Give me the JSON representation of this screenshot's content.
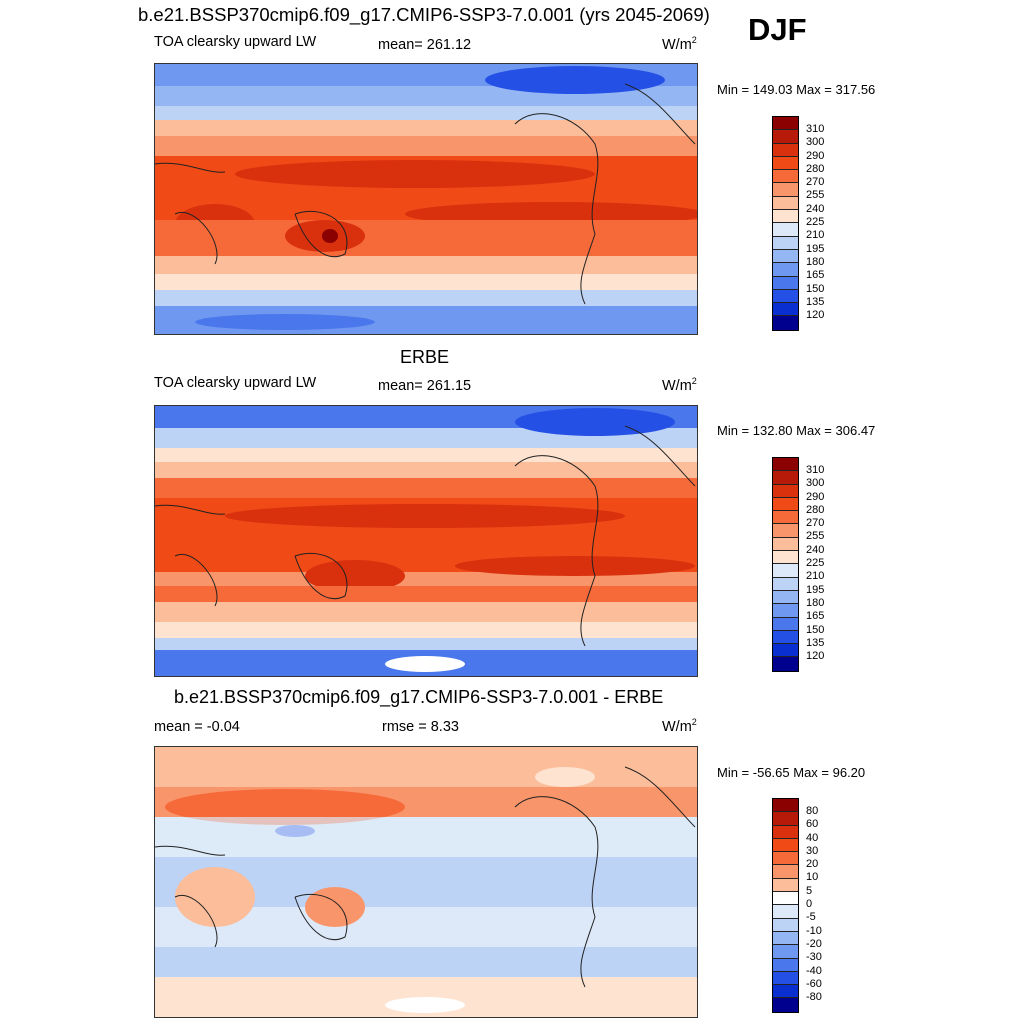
{
  "figure": {
    "title": "b.e21.BSSP370cmip6.f09_g17.CMIP6-SSP3-7.0.001 (yrs 2045-2069)",
    "season": "DJF"
  },
  "panels": [
    {
      "id": "model",
      "title": "",
      "left_label": "TOA clearsky upward LW",
      "center_label": "mean= 261.12",
      "units": "W/m",
      "units_sup": "2",
      "minmax": "Min = 149.03 Max = 317.56"
    },
    {
      "id": "obs",
      "title": "ERBE",
      "left_label": "TOA clearsky upward LW",
      "center_label": "mean= 261.15",
      "units": "W/m",
      "units_sup": "2",
      "minmax": "Min = 132.80 Max = 306.47"
    },
    {
      "id": "diff",
      "title": "b.e21.BSSP370cmip6.f09_g17.CMIP6-SSP3-7.0.001 - ERBE",
      "left_label": "mean =  -0.04",
      "center_label": "rmse =   8.33",
      "units": "W/m",
      "units_sup": "2",
      "minmax": "Min = -56.65 Max =  96.20"
    }
  ],
  "colorbars": {
    "field": {
      "labels": [
        "310",
        "300",
        "290",
        "280",
        "270",
        "255",
        "240",
        "225",
        "210",
        "195",
        "180",
        "165",
        "150",
        "135",
        "120"
      ],
      "colors": [
        "#8b0000",
        "#b81a0a",
        "#d9300e",
        "#f04a16",
        "#f66a3a",
        "#f9956a",
        "#fbbd9a",
        "#fde3d0",
        "#dde9f8",
        "#bdd3f6",
        "#94b7f4",
        "#6f98f0",
        "#4a77ec",
        "#2550e6",
        "#0a2fd0",
        "#00008f"
      ]
    },
    "diff": {
      "labels": [
        "80",
        "60",
        "40",
        "30",
        "20",
        "10",
        "5",
        "0",
        "-5",
        "-10",
        "-20",
        "-30",
        "-40",
        "-60",
        "-80"
      ],
      "colors": [
        "#8b0000",
        "#b81a0a",
        "#d9300e",
        "#f04a16",
        "#f66a3a",
        "#f9956a",
        "#fbbd9a",
        "#ffffff",
        "#dde9f8",
        "#bdd3f6",
        "#94b7f4",
        "#6f98f0",
        "#4a77ec",
        "#2550e6",
        "#0a2fd0",
        "#00008f"
      ]
    }
  }
}
